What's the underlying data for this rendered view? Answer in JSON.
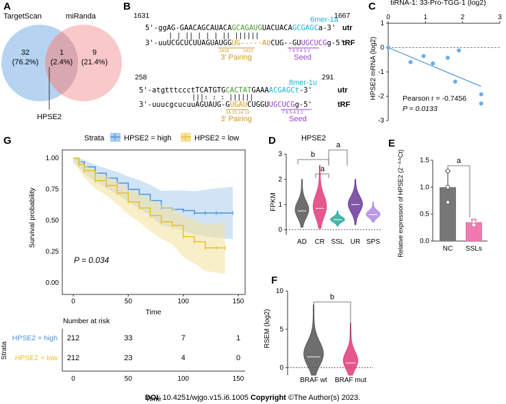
{
  "footer": {
    "doi_label": "DOI",
    "doi_value": ": 10.4251/wjgo.v15.i6.1005",
    "copyright_label": "Copyright",
    "copyright_value": " ©The Author(s) 2023."
  },
  "colors": {
    "blue": "#4a90d9",
    "blue_fill": "#a9cdee",
    "pink": "#f07a90",
    "pink_fill": "#f7b5b8",
    "yellow": "#e8c020",
    "green": "#4a9a2a",
    "cyan": "#1ab0d8",
    "purple": "#9a40c8",
    "gold": "#d09a20"
  },
  "panel_a": {
    "letter": "A",
    "set1": "TargetScan",
    "set2": "miRanda",
    "left_count": "32",
    "left_pct": "(76.2%)",
    "mid_count": "1",
    "mid_pct": "(2.4%)",
    "right_count": "9",
    "right_pct": "(21.4%)",
    "callout": "HPSE2"
  },
  "panel_b": {
    "letter": "B",
    "site1": {
      "start": "1631",
      "end": "1667",
      "seed_type": "6mer-1a",
      "utr_5": "5'-ggAG-GAACAGCAUACA",
      "utr_green": "GCAGAUG",
      "utr_mid": "UACUACA",
      "utr_cyan": "GCGAGC",
      "utr_tail": "a-3'",
      "bars": "|  |  ||  |  |                |  ||  ||||||",
      "trf_3": "3'-uuUCGCUCUUAGUAUGG",
      "trf_orange": "UG-----AU",
      "trf_mid": "CUG--GU",
      "trf_purple": "UGCUCG",
      "trf_tail": "g-5'",
      "pos_orange": "1615",
      "pos_orange2": "1413",
      "pos_purple": "7 6 5 4 3 2",
      "pairing": "3' Pairing",
      "seed": "Seed"
    },
    "site2": {
      "start": "258",
      "end": "291",
      "seed_type": "8mer-1u",
      "utr_5": "5'-atgtttccctTCATGTG",
      "utr_green": "CACTAT",
      "utr_mid": "GAAA",
      "utr_cyan": "ACGAGCt",
      "utr_tail": "-3'",
      "bars": "|||:  :         :   ||||||",
      "trf_3": "3'-uuucgcucuuAGUAUG-G",
      "trf_orange": "UGAU",
      "trf_mid": "CUGGU",
      "trf_purple": "UGCUCG",
      "trf_tail": "g-5'",
      "pos_orange": "16 15 14 13",
      "pos_purple": "7 6 5 4 3 2",
      "pairing": "3' Pairing",
      "seed": "Seed"
    },
    "utr_label": "utr",
    "trf_label": "tRF"
  },
  "panel_c": {
    "letter": "C",
    "x_title": "tiRNA-1: 33-Pro-TGG-1 (log2)",
    "y_title": "HPSE2 mRNA (log2)",
    "stat_r": "Pearson r = -0.7456",
    "stat_p": "P = 0.0133"
  },
  "panel_d": {
    "letter": "D",
    "title": "HPSE2",
    "sig_labels": [
      "b",
      "a",
      "a"
    ]
  },
  "panel_e": {
    "letter": "E",
    "y_title": "Relative expression of HPSE2 (2⁻ᐞᐞCt)",
    "sig": "a"
  },
  "panel_f": {
    "letter": "F",
    "sig": "b"
  },
  "panel_g": {
    "letter": "G",
    "strata_label": "Strata",
    "legend_high": "HPSE2 = high",
    "legend_low": "HPSE2 = low",
    "p_value": "P = 0.034",
    "risk_title": "Number at risk",
    "risk_strata": "Strata",
    "risk_high_label": "HPSE2 = high",
    "risk_low_label": "HPSE2 = low",
    "risk_high": [
      "212",
      "33",
      "7",
      "1"
    ],
    "risk_low": [
      "212",
      "23",
      "4",
      "0"
    ]
  },
  "chart_data": [
    {
      "type": "scatter",
      "panel": "C",
      "xlabel": "tiRNA-1: 33-Pro-TGG-1 (log2)",
      "ylabel": "HPSE2 mRNA (log2)",
      "xlim": [
        0,
        3
      ],
      "ylim": [
        -3,
        1
      ],
      "xticks": [
        0,
        1,
        2,
        3
      ],
      "yticks": [
        1,
        0,
        -1,
        -2,
        -3
      ],
      "points": [
        [
          0.0,
          0.0
        ],
        [
          0.6,
          -0.6
        ],
        [
          0.95,
          -0.35
        ],
        [
          1.2,
          -0.65
        ],
        [
          1.6,
          -0.42
        ],
        [
          1.8,
          -1.4
        ],
        [
          1.9,
          -0.12
        ],
        [
          2.5,
          -1.92
        ],
        [
          2.5,
          -2.3
        ]
      ],
      "fit": [
        [
          0.0,
          0.0
        ],
        [
          2.5,
          -1.6
        ]
      ],
      "reference_line": 0
    },
    {
      "type": "violin",
      "panel": "D",
      "title": "HPSE2",
      "ylabel": "FPKM",
      "ylim": [
        -0.2,
        3.0
      ],
      "yticks": [
        0,
        1,
        2,
        3
      ],
      "categories": [
        "AD",
        "CR",
        "SSL",
        "UR",
        "SPS"
      ],
      "medians": [
        0.75,
        0.85,
        0.4,
        1.0,
        0.6
      ],
      "ranges": [
        [
          0.1,
          2.0
        ],
        [
          0.05,
          2.55
        ],
        [
          0.15,
          0.75
        ],
        [
          0.2,
          2.0
        ],
        [
          0.3,
          1.1
        ]
      ],
      "colors": [
        "#555555",
        "#e23a78",
        "#2aa89a",
        "#6a3a9a",
        "#b08ae0"
      ]
    },
    {
      "type": "bar",
      "panel": "E",
      "ylabel": "Relative expression of HPSE2 (2-ΔΔCt)",
      "ylim": [
        0,
        1.5
      ],
      "yticks": [
        0.0,
        0.5,
        1.0,
        1.5
      ],
      "categories": [
        "NC",
        "SSLs"
      ],
      "values": [
        1.0,
        0.35
      ],
      "errors": [
        0.3,
        0.05
      ],
      "points": [
        [
          1.3,
          0.72,
          1.0
        ],
        [
          0.3,
          0.38,
          0.36
        ]
      ]
    },
    {
      "type": "violin",
      "panel": "F",
      "ylabel": "RSEM (log2)",
      "ylim": [
        -1,
        10
      ],
      "yticks": [
        0,
        5,
        10
      ],
      "categories": [
        "BRAF wt",
        "BRAF mut"
      ],
      "medians": [
        1.4,
        0.6
      ],
      "ranges": [
        [
          -1.0,
          8.2
        ],
        [
          -1.0,
          5.8
        ]
      ],
      "colors": [
        "#555555",
        "#e23a78"
      ]
    },
    {
      "type": "line",
      "panel": "G",
      "title": "",
      "xlabel": "Time",
      "ylabel": "Survival probability",
      "xlim": [
        0,
        150
      ],
      "ylim": [
        0,
        1
      ],
      "xticks": [
        0,
        50,
        100,
        150
      ],
      "yticks": [
        0.0,
        0.25,
        0.5,
        0.75,
        1.0
      ],
      "series": [
        {
          "name": "HPSE2 = high",
          "x": [
            0,
            5,
            10,
            20,
            30,
            40,
            50,
            60,
            70,
            80,
            90,
            100,
            110,
            120,
            130,
            145
          ],
          "y": [
            1.0,
            0.97,
            0.93,
            0.88,
            0.84,
            0.8,
            0.75,
            0.71,
            0.66,
            0.6,
            0.59,
            0.58,
            0.56,
            0.56,
            0.56,
            0.56
          ]
        },
        {
          "name": "HPSE2 = low",
          "x": [
            0,
            5,
            10,
            20,
            30,
            40,
            50,
            60,
            70,
            80,
            90,
            100,
            110,
            120,
            130,
            138
          ],
          "y": [
            1.0,
            0.95,
            0.9,
            0.82,
            0.78,
            0.72,
            0.65,
            0.6,
            0.54,
            0.49,
            0.46,
            0.37,
            0.33,
            0.28,
            0.28,
            0.28
          ]
        }
      ]
    }
  ]
}
